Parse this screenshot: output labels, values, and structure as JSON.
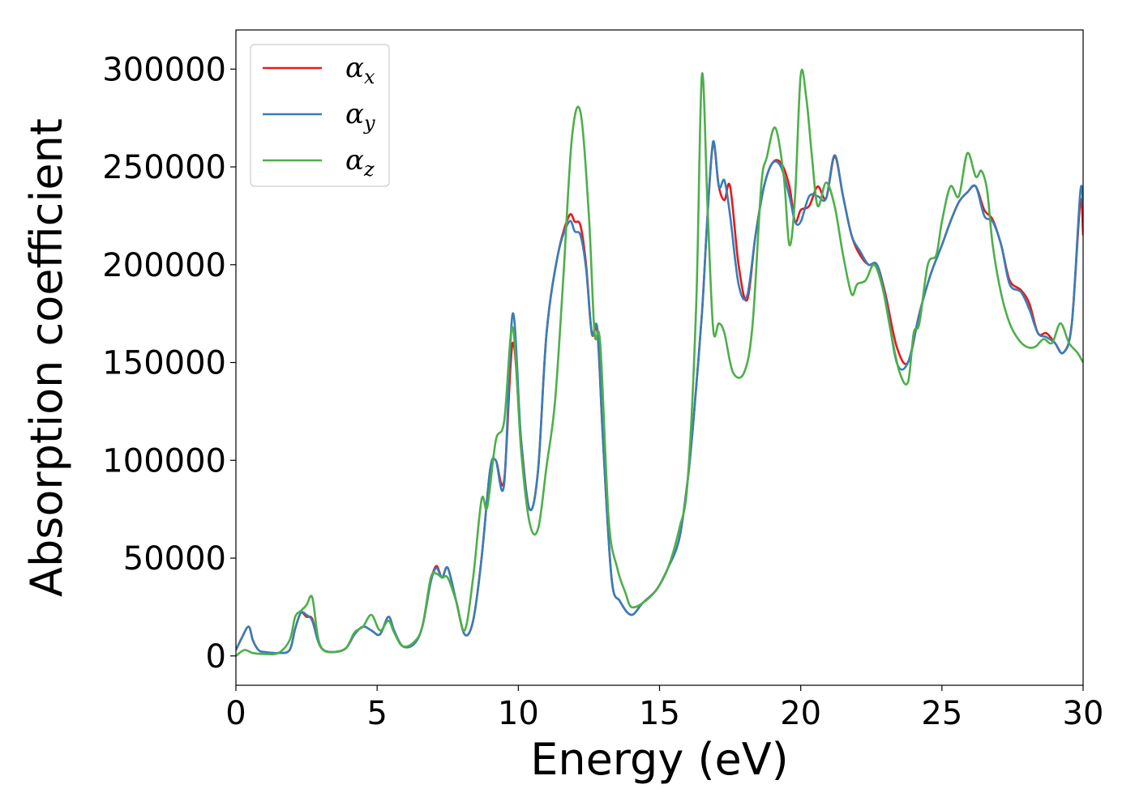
{
  "chart_data": {
    "type": "line",
    "title": "",
    "xlabel": "Energy (eV)",
    "ylabel": "Absorption coefficient",
    "xlim": [
      0,
      30
    ],
    "ylim": [
      -15000,
      320000
    ],
    "xticks": [
      0,
      5,
      10,
      15,
      20,
      25,
      30
    ],
    "yticks": [
      0,
      50000,
      100000,
      150000,
      200000,
      250000,
      300000
    ],
    "grid": false,
    "legend_position": "top-left",
    "series": [
      {
        "name": "α_x",
        "symbol": "α",
        "subscript": "x",
        "color": "#e41a1c",
        "x": [
          0.0,
          0.2,
          0.45,
          0.6,
          0.8,
          1.0,
          1.5,
          1.9,
          2.1,
          2.3,
          2.5,
          2.7,
          2.9,
          3.1,
          3.5,
          3.9,
          4.2,
          4.5,
          4.8,
          5.1,
          5.4,
          5.6,
          5.9,
          6.3,
          6.6,
          6.9,
          7.1,
          7.3,
          7.5,
          7.8,
          8.1,
          8.4,
          8.7,
          9.0,
          9.2,
          9.5,
          9.8,
          10.1,
          10.4,
          10.7,
          11.0,
          11.4,
          11.8,
          12.0,
          12.2,
          12.4,
          12.6,
          12.8,
          13.0,
          13.3,
          13.6,
          14.0,
          14.4,
          14.9,
          15.3,
          15.7,
          16.0,
          16.2,
          16.5,
          16.7,
          16.9,
          17.1,
          17.3,
          17.5,
          17.8,
          18.1,
          18.4,
          18.7,
          19.0,
          19.3,
          19.6,
          19.8,
          20.0,
          20.3,
          20.6,
          20.9,
          21.2,
          21.5,
          21.8,
          22.1,
          22.4,
          22.7,
          23.0,
          23.4,
          23.8,
          24.2,
          24.6,
          25.0,
          25.3,
          25.6,
          25.9,
          26.2,
          26.5,
          26.8,
          27.1,
          27.4,
          27.8,
          28.1,
          28.4,
          28.7,
          29.0,
          29.3,
          29.6,
          29.9,
          30.0
        ],
        "y": [
          3000,
          9000,
          15000,
          8000,
          3000,
          2000,
          1500,
          3000,
          14000,
          22000,
          20000,
          19000,
          8000,
          3000,
          2000,
          4000,
          11000,
          15000,
          13000,
          11000,
          20000,
          13000,
          5000,
          6000,
          15000,
          38000,
          46000,
          40000,
          45000,
          28000,
          11000,
          18000,
          50000,
          95000,
          100000,
          90000,
          160000,
          110000,
          75000,
          95000,
          165000,
          205000,
          225000,
          222000,
          220000,
          200000,
          165000,
          165000,
          110000,
          40000,
          28000,
          21000,
          27000,
          34000,
          45000,
          60000,
          90000,
          120000,
          175000,
          225000,
          262000,
          240000,
          233000,
          240000,
          200000,
          182000,
          215000,
          240000,
          252000,
          252000,
          240000,
          222000,
          228000,
          230000,
          240000,
          234000,
          255000,
          235000,
          215000,
          205000,
          200000,
          200000,
          185000,
          158000,
          150000,
          175000,
          195000,
          210000,
          222000,
          232000,
          237000,
          240000,
          228000,
          223000,
          210000,
          192000,
          187000,
          180000,
          165000,
          165000,
          160000,
          155000,
          170000,
          232000,
          215000
        ]
      },
      {
        "name": "α_y",
        "symbol": "α",
        "subscript": "y",
        "color": "#377eb8",
        "x": [
          0.0,
          0.2,
          0.45,
          0.6,
          0.8,
          1.0,
          1.5,
          1.9,
          2.1,
          2.3,
          2.5,
          2.7,
          2.9,
          3.1,
          3.5,
          3.9,
          4.2,
          4.5,
          4.8,
          5.1,
          5.4,
          5.6,
          5.9,
          6.3,
          6.6,
          6.9,
          7.1,
          7.3,
          7.5,
          7.8,
          8.1,
          8.4,
          8.7,
          9.0,
          9.2,
          9.5,
          9.8,
          10.1,
          10.4,
          10.7,
          11.0,
          11.4,
          11.8,
          12.0,
          12.2,
          12.4,
          12.6,
          12.8,
          13.0,
          13.3,
          13.6,
          14.0,
          14.4,
          14.9,
          15.3,
          15.7,
          16.0,
          16.2,
          16.5,
          16.7,
          16.9,
          17.1,
          17.3,
          17.5,
          17.8,
          18.1,
          18.4,
          18.7,
          19.0,
          19.3,
          19.6,
          19.8,
          20.0,
          20.3,
          20.6,
          20.9,
          21.2,
          21.5,
          21.8,
          22.1,
          22.4,
          22.7,
          23.0,
          23.4,
          23.8,
          24.2,
          24.6,
          25.0,
          25.3,
          25.6,
          25.9,
          26.2,
          26.5,
          26.8,
          27.1,
          27.4,
          27.8,
          28.1,
          28.4,
          28.7,
          29.0,
          29.3,
          29.6,
          29.9,
          30.0
        ],
        "y": [
          3000,
          9000,
          15000,
          8000,
          3000,
          2000,
          1500,
          3000,
          14000,
          22000,
          21000,
          18000,
          8000,
          3000,
          2000,
          4000,
          11000,
          15000,
          13000,
          11000,
          20000,
          13000,
          5000,
          6000,
          15000,
          38000,
          45000,
          40000,
          45000,
          28000,
          11000,
          18000,
          50000,
          95000,
          100000,
          88000,
          175000,
          110000,
          75000,
          95000,
          165000,
          205000,
          222000,
          217000,
          215000,
          198000,
          165000,
          167000,
          110000,
          40000,
          28000,
          21000,
          27000,
          34000,
          45000,
          60000,
          90000,
          120000,
          175000,
          225000,
          263000,
          240000,
          243000,
          225000,
          190000,
          184000,
          215000,
          240000,
          252000,
          250000,
          235000,
          222000,
          222000,
          235000,
          235000,
          234000,
          256000,
          235000,
          215000,
          207000,
          200000,
          200000,
          183000,
          150000,
          150000,
          175000,
          195000,
          210000,
          222000,
          232000,
          237000,
          240000,
          225000,
          222000,
          210000,
          190000,
          186000,
          177000,
          165000,
          163000,
          160000,
          155000,
          170000,
          237000,
          230000
        ]
      },
      {
        "name": "α_z",
        "symbol": "α",
        "subscript": "z",
        "color": "#4daf4a",
        "x": [
          0.0,
          0.3,
          0.6,
          1.0,
          1.5,
          1.9,
          2.1,
          2.3,
          2.5,
          2.7,
          2.9,
          3.1,
          3.5,
          3.9,
          4.2,
          4.5,
          4.8,
          5.1,
          5.4,
          5.6,
          5.9,
          6.3,
          6.6,
          6.9,
          7.1,
          7.3,
          7.5,
          7.8,
          8.1,
          8.4,
          8.7,
          8.9,
          9.2,
          9.5,
          9.8,
          10.1,
          10.4,
          10.7,
          11.0,
          11.3,
          11.6,
          11.9,
          12.2,
          12.5,
          12.7,
          12.9,
          13.2,
          13.5,
          13.8,
          14.0,
          14.4,
          14.9,
          15.3,
          15.7,
          16.0,
          16.3,
          16.5,
          16.7,
          16.9,
          17.1,
          17.3,
          17.6,
          18.0,
          18.3,
          18.6,
          18.8,
          19.1,
          19.4,
          19.6,
          19.8,
          20.0,
          20.2,
          20.4,
          20.6,
          20.9,
          21.2,
          21.5,
          21.8,
          22.0,
          22.3,
          22.6,
          22.9,
          23.2,
          23.5,
          23.8,
          24.0,
          24.2,
          24.5,
          24.8,
          25.0,
          25.3,
          25.6,
          25.9,
          26.2,
          26.4,
          26.6,
          26.8,
          27.1,
          27.4,
          27.7,
          28.0,
          28.3,
          28.6,
          28.9,
          29.2,
          29.5,
          29.8,
          30.0
        ],
        "y": [
          0,
          3000,
          1500,
          1000,
          1500,
          8000,
          20000,
          23000,
          26000,
          30000,
          10000,
          3000,
          2000,
          4000,
          12000,
          15000,
          21000,
          13000,
          18000,
          12000,
          5000,
          7000,
          15000,
          40000,
          42000,
          40000,
          40000,
          28000,
          13000,
          40000,
          80000,
          76000,
          110000,
          120000,
          168000,
          105000,
          68000,
          65000,
          97000,
          130000,
          195000,
          265000,
          278000,
          225000,
          165000,
          160000,
          70000,
          45000,
          32000,
          25000,
          27000,
          34000,
          45000,
          65000,
          90000,
          180000,
          297000,
          230000,
          167000,
          170000,
          165000,
          145000,
          145000,
          170000,
          240000,
          255000,
          270000,
          245000,
          210000,
          235000,
          297000,
          285000,
          255000,
          230000,
          242000,
          230000,
          205000,
          185000,
          190000,
          192000,
          200000,
          188000,
          165000,
          145000,
          140000,
          165000,
          170000,
          200000,
          205000,
          222000,
          240000,
          235000,
          257000,
          245000,
          248000,
          238000,
          210000,
          185000,
          170000,
          162000,
          158000,
          158000,
          162000,
          160000,
          170000,
          160000,
          155000,
          150000
        ]
      }
    ]
  }
}
